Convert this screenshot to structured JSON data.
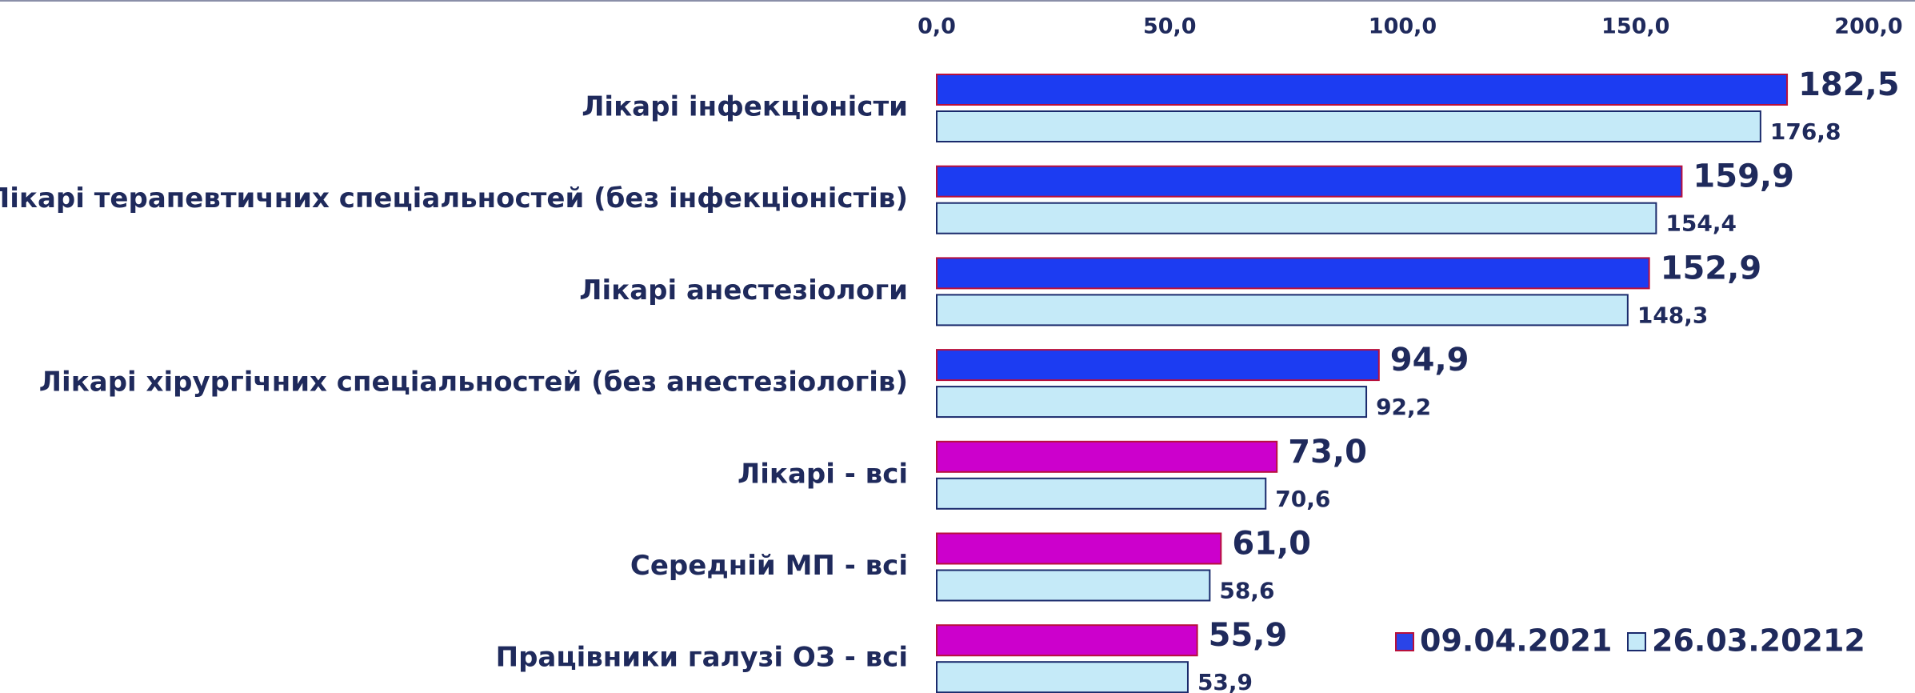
{
  "chart_data": {
    "type": "hbar",
    "categories": [
      "Лікарі інфекціоністи",
      "Лікарі терапевтичних спеціальностей (без інфекціоністів)",
      "Лікарі анестезіологи",
      "Лікарі хірургічних спеціальностей (без анестезіологів)",
      "Лікарі - всі",
      "Середній МП - всі",
      "Працівники галузі ОЗ - всі"
    ],
    "series": [
      {
        "name": "09.04.2021",
        "color": "#2a44e8",
        "colors": [
          "#1c3cf2",
          "#1c3cf2",
          "#1c3cf2",
          "#1c3cf2",
          "#cc00cc",
          "#cc00cc",
          "#cc00cc"
        ],
        "values": [
          182.5,
          159.9,
          152.9,
          94.9,
          73.0,
          61.0,
          55.9
        ],
        "value_labels": [
          "182,5",
          "159,9",
          "152,9",
          "94,9",
          "73,0",
          "61,0",
          "55,9"
        ]
      },
      {
        "name": "26.03.20212",
        "color": "#c5eaf8",
        "values": [
          176.8,
          154.4,
          148.3,
          92.2,
          70.6,
          58.6,
          53.9
        ],
        "value_labels": [
          "176,8",
          "154,4",
          "148,3",
          "92,2",
          "70,6",
          "58,6",
          "53,9"
        ]
      }
    ],
    "xlim": [
      0,
      200
    ],
    "xticks": [
      {
        "value": 0,
        "label": "0,0"
      },
      {
        "value": 50,
        "label": "50,0"
      },
      {
        "value": 100,
        "label": "100,0"
      },
      {
        "value": 150,
        "label": "150,0"
      },
      {
        "value": 200,
        "label": "200,0"
      }
    ],
    "legend": "bottom-right"
  }
}
